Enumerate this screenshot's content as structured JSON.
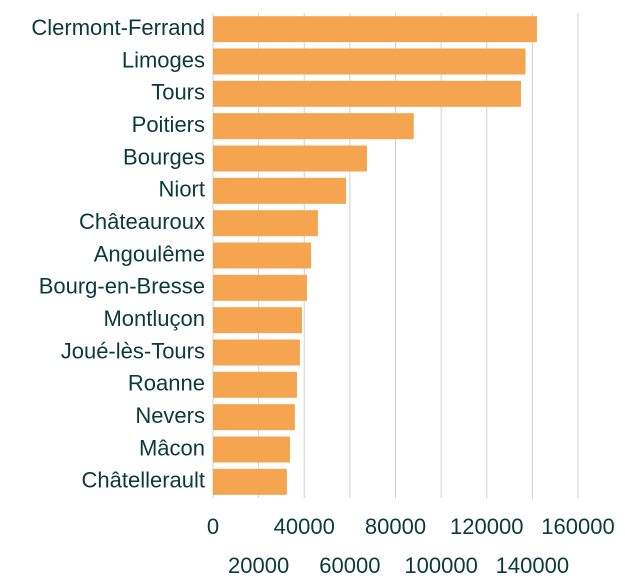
{
  "chart_data": {
    "type": "bar",
    "orientation": "horizontal",
    "categories": [
      "Clermont-Ferrand",
      "Limoges",
      "Tours",
      "Poitiers",
      "Bourges",
      "Niort",
      "Châteauroux",
      "Angoulême",
      "Bourg-en-Bresse",
      "Montluçon",
      "Joué-lès-Tours",
      "Roanne",
      "Nevers",
      "Mâcon",
      "Châtellerault"
    ],
    "values": [
      142000,
      137000,
      135000,
      88000,
      67500,
      58300,
      46000,
      43000,
      41200,
      39000,
      38100,
      36800,
      35900,
      33750,
      32400
    ],
    "color": "#f5a54f",
    "xlim": [
      0,
      160000
    ],
    "xticks": [
      0,
      20000,
      40000,
      60000,
      80000,
      100000,
      120000,
      140000,
      160000
    ],
    "grid": true
  }
}
